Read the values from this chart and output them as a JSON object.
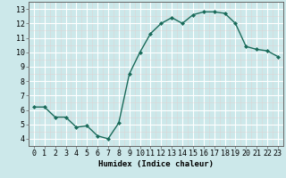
{
  "x": [
    0,
    1,
    2,
    3,
    4,
    5,
    6,
    7,
    8,
    9,
    10,
    11,
    12,
    13,
    14,
    15,
    16,
    17,
    18,
    19,
    20,
    21,
    22,
    23
  ],
  "y": [
    6.2,
    6.2,
    5.5,
    5.5,
    4.8,
    4.9,
    4.2,
    4.0,
    5.1,
    8.5,
    10.0,
    11.3,
    12.0,
    12.4,
    12.0,
    12.6,
    12.8,
    12.8,
    12.7,
    12.0,
    10.4,
    10.2,
    10.1,
    9.7
  ],
  "line_color": "#1a6b5a",
  "marker": "D",
  "marker_size": 2.0,
  "bg_color": "#cce8ea",
  "grid_color": "#ffffff",
  "grid_minor_color": "#e0f0f2",
  "xlabel": "Humidex (Indice chaleur)",
  "ylim": [
    3.5,
    13.5
  ],
  "xlim": [
    -0.5,
    23.5
  ],
  "yticks": [
    4,
    5,
    6,
    7,
    8,
    9,
    10,
    11,
    12,
    13
  ],
  "xtick_labels": [
    "0",
    "1",
    "2",
    "3",
    "4",
    "5",
    "6",
    "7",
    "8",
    "9",
    "10",
    "11",
    "12",
    "13",
    "14",
    "15",
    "16",
    "17",
    "18",
    "19",
    "20",
    "21",
    "22",
    "23"
  ],
  "xlabel_fontsize": 6.5,
  "tick_fontsize": 6,
  "line_width": 1.0
}
